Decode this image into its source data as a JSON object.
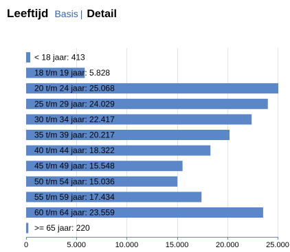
{
  "header": {
    "title": "Leeftijd",
    "tab_basis": "Basis",
    "separator": "|",
    "tab_detail": "Detail"
  },
  "colors": {
    "bar": "#5b87c9",
    "grid": "#e3e3e3",
    "axis": "#5b87c9"
  },
  "chart_data": {
    "type": "bar",
    "orientation": "horizontal",
    "categories": [
      "< 18 jaar",
      "18 t/m 19 jaar",
      "20 t/m 24 jaar",
      "25 t/m 29 jaar",
      "30 t/m 34 jaar",
      "35 t/m 39 jaar",
      "40 t/m 44 jaar",
      "45 t/m 49 jaar",
      "50 t/m 54 jaar",
      "55 t/m 59 jaar",
      "60 t/m 64 jaar",
      ">= 65 jaar"
    ],
    "values": [
      413,
      5828,
      25068,
      24029,
      22417,
      20217,
      18322,
      15548,
      15036,
      17434,
      23559,
      220
    ],
    "labels": [
      "< 18 jaar: 413",
      "18 t/m 19 jaar: 5.828",
      "20 t/m 24 jaar: 25.068",
      "25 t/m 29 jaar: 24.029",
      "30 t/m 34 jaar: 22.417",
      "35 t/m 39 jaar: 20.217",
      "40 t/m 44 jaar: 18.322",
      "45 t/m 49 jaar: 15.548",
      "50 t/m 54 jaar: 15.036",
      "55 t/m 59 jaar: 17.434",
      "60 t/m 64 jaar: 23.559",
      ">= 65 jaar: 220"
    ],
    "xlim": [
      0,
      25000
    ],
    "xticks": [
      0,
      5000,
      10000,
      15000,
      20000,
      25000
    ],
    "xtick_labels": [
      "0",
      "5.000",
      "10.000",
      "15.000",
      "20.000",
      "25.000"
    ],
    "grid": true,
    "legend": "none"
  }
}
